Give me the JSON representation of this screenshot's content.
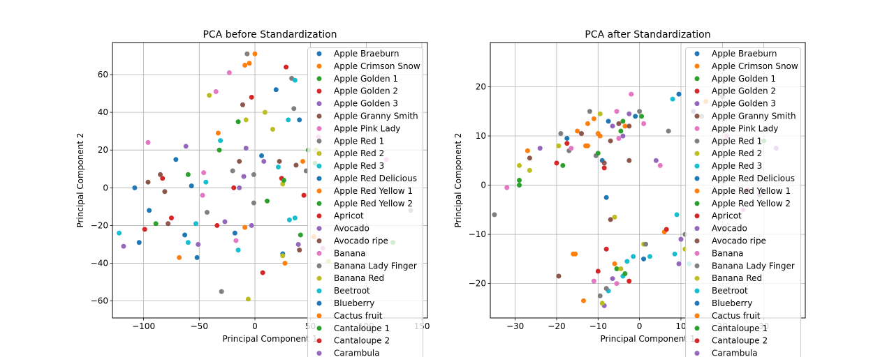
{
  "legend_labels": [
    "Apple Braeburn",
    "Apple Crimson Snow",
    "Apple Golden 1",
    "Apple Golden 2",
    "Apple Golden 3",
    "Apple Granny Smith",
    "Apple Pink Lady",
    "Apple Red 1",
    "Apple Red 2",
    "Apple Red 3",
    "Apple Red Delicious",
    "Apple Red Yellow 1",
    "Apple Red Yellow 2",
    "Apricot",
    "Avocado",
    "Avocado ripe",
    "Banana",
    "Banana Lady Finger",
    "Banana Red",
    "Beetroot",
    "Blueberry",
    "Cactus fruit",
    "Cantaloupe 1",
    "Cantaloupe 2",
    "Carambula"
  ],
  "palette": [
    "#1f77b4",
    "#ff7f0e",
    "#2ca02c",
    "#d62728",
    "#9467bd",
    "#8c564b",
    "#e377c2",
    "#7f7f7f",
    "#bcbd22",
    "#17becf"
  ],
  "chart_data": [
    {
      "type": "scatter",
      "title": "PCA before Standardization",
      "xlabel": "Principal Component 1",
      "ylabel": "Principal Component 2",
      "xlim": [
        -128,
        155
      ],
      "ylim": [
        -69,
        77
      ],
      "xticks": [
        -100,
        -50,
        0,
        50,
        100,
        150
      ],
      "yticks": [
        -60,
        -40,
        -20,
        0,
        20,
        40,
        60
      ],
      "xtick_labels": [
        "−100",
        "−50",
        "0",
        "50",
        "100",
        "150"
      ],
      "ytick_labels": [
        "−60",
        "−40",
        "−20",
        "0",
        "20",
        "40",
        "60"
      ],
      "grid": true,
      "legend": "upper right",
      "points": [
        [
          -108,
          0,
          0
        ],
        [
          -83,
          5,
          3
        ],
        [
          -85,
          7,
          5
        ],
        [
          -81,
          -2,
          5
        ],
        [
          -62,
          22,
          4
        ],
        [
          -57,
          1,
          0
        ],
        [
          -60,
          7,
          2
        ],
        [
          -71,
          15,
          0
        ],
        [
          -96,
          3,
          5
        ],
        [
          -96,
          24,
          6
        ],
        [
          -95,
          -12,
          0
        ],
        [
          -104,
          -29,
          0
        ],
        [
          -118,
          -31,
          4
        ],
        [
          -122,
          -24,
          9
        ],
        [
          -99,
          -22,
          3
        ],
        [
          -89,
          -19,
          2
        ],
        [
          -78,
          -19,
          5
        ],
        [
          -75,
          -16,
          3
        ],
        [
          -68,
          -37,
          1
        ],
        [
          -63,
          -25,
          0
        ],
        [
          -60,
          -29,
          9
        ],
        [
          -53,
          -19,
          9
        ],
        [
          -51,
          -30,
          4
        ],
        [
          -52,
          -37,
          0
        ],
        [
          -47,
          -4,
          6
        ],
        [
          -44,
          3,
          9
        ],
        [
          -46,
          8,
          6
        ],
        [
          -43,
          -13,
          7
        ],
        [
          -41,
          49,
          8
        ],
        [
          -35,
          51,
          6
        ],
        [
          -34,
          -20,
          3
        ],
        [
          -30,
          -55,
          7
        ],
        [
          -31,
          25,
          9
        ],
        [
          -32,
          20,
          2
        ],
        [
          -33,
          29,
          1
        ],
        [
          -27,
          -18,
          4
        ],
        [
          -23,
          61,
          6
        ],
        [
          -20,
          9,
          7
        ],
        [
          -19,
          0,
          3
        ],
        [
          -18,
          -24,
          0
        ],
        [
          -17,
          -28,
          6
        ],
        [
          -15,
          -33,
          9
        ],
        [
          -15,
          35,
          2
        ],
        [
          -14,
          14,
          5
        ],
        [
          -14,
          0,
          4
        ],
        [
          -11,
          44,
          5
        ],
        [
          -10,
          6,
          4
        ],
        [
          -9,
          -21,
          1
        ],
        [
          -8,
          36,
          8
        ],
        [
          -8,
          21,
          4
        ],
        [
          -7,
          71,
          7
        ],
        [
          -6,
          -59,
          8
        ],
        [
          -3,
          -20,
          4
        ],
        [
          -5,
          66,
          1
        ],
        [
          -3,
          48,
          3
        ],
        [
          0,
          71,
          1
        ],
        [
          -1,
          7,
          7
        ],
        [
          -1,
          -8,
          7
        ],
        [
          -9,
          65,
          1
        ],
        [
          6,
          17,
          0
        ],
        [
          7,
          -45,
          3
        ],
        [
          8,
          14,
          4
        ],
        [
          9,
          40,
          8
        ],
        [
          11,
          -7,
          2
        ],
        [
          16,
          31,
          8
        ],
        [
          19,
          52,
          0
        ],
        [
          21,
          11,
          9
        ],
        [
          22,
          14,
          5
        ],
        [
          24,
          5,
          3
        ],
        [
          25,
          2,
          8
        ],
        [
          26,
          4,
          2
        ],
        [
          25,
          -35,
          0
        ],
        [
          25,
          -36,
          8
        ],
        [
          27,
          -40,
          1
        ],
        [
          28,
          64,
          3
        ],
        [
          30,
          36,
          9
        ],
        [
          31,
          -17,
          9
        ],
        [
          33,
          58,
          7
        ],
        [
          36,
          57,
          9
        ],
        [
          35,
          42,
          7
        ],
        [
          36,
          -16,
          9
        ],
        [
          37,
          12,
          5
        ],
        [
          39,
          -30,
          4
        ],
        [
          40,
          36,
          0
        ],
        [
          40,
          -33,
          5
        ],
        [
          41,
          -25,
          2
        ],
        [
          43,
          14,
          1
        ],
        [
          44,
          -4,
          3
        ],
        [
          46,
          9,
          7
        ],
        [
          48,
          20,
          2
        ],
        [
          53,
          -26,
          1
        ],
        [
          57,
          27,
          6
        ],
        [
          55,
          20,
          8
        ],
        [
          54,
          13,
          2
        ],
        [
          61,
          -32,
          6
        ],
        [
          66,
          -39,
          8
        ],
        [
          118,
          15,
          6
        ],
        [
          140,
          -12,
          7
        ],
        [
          124,
          -29,
          2
        ]
      ]
    },
    {
      "type": "scatter",
      "title": "PCA after Standardization",
      "xlabel": "Principal Component 1",
      "ylabel": "Principal Component 2",
      "xlim": [
        -36,
        40
      ],
      "ylim": [
        -27,
        29
      ],
      "xticks": [
        -30,
        -20,
        -10,
        0,
        10,
        20,
        30
      ],
      "yticks": [
        -20,
        -10,
        0,
        10,
        20
      ],
      "xtick_labels": [
        "−30",
        "−20",
        "−10",
        "0",
        "10",
        "20",
        "30"
      ],
      "ytick_labels": [
        "−20",
        "−10",
        "0",
        "10",
        "20"
      ],
      "grid": true,
      "legend": "upper right",
      "points": [
        [
          -35,
          -6,
          7
        ],
        [
          -32,
          -0.5,
          6
        ],
        [
          -29,
          1,
          2
        ],
        [
          -29,
          0,
          2
        ],
        [
          -29,
          4,
          8
        ],
        [
          -27,
          7,
          1
        ],
        [
          -26.5,
          5.5,
          5
        ],
        [
          -26.5,
          3,
          8
        ],
        [
          -24,
          7.5,
          4
        ],
        [
          -20,
          4.5,
          3
        ],
        [
          -19.5,
          8,
          8
        ],
        [
          -19,
          10.5,
          7
        ],
        [
          -18.5,
          4,
          2
        ],
        [
          -17.5,
          8.5,
          3
        ],
        [
          -17.5,
          9.5,
          0
        ],
        [
          -17,
          7,
          7
        ],
        [
          -16.5,
          7.5,
          6
        ],
        [
          -16,
          -14,
          1
        ],
        [
          -15,
          11,
          1
        ],
        [
          -14,
          10.5,
          5
        ],
        [
          -13,
          8,
          1
        ],
        [
          -12.5,
          12.5,
          1
        ],
        [
          -12.5,
          8,
          1
        ],
        [
          -12,
          15,
          7
        ],
        [
          -11,
          13.5,
          1
        ],
        [
          -10.5,
          6,
          7
        ],
        [
          -10,
          6.5,
          2
        ],
        [
          -10,
          10.5,
          1
        ],
        [
          -9.5,
          10,
          1
        ],
        [
          -9.5,
          14.5,
          8
        ],
        [
          -9,
          5,
          0
        ],
        [
          -8.5,
          4.5,
          5
        ],
        [
          -8.5,
          3.5,
          3
        ],
        [
          -8,
          -2.5,
          0
        ],
        [
          -8,
          -13,
          3
        ],
        [
          -7.5,
          13,
          0
        ],
        [
          -7,
          9,
          5
        ],
        [
          -7,
          -7,
          5
        ],
        [
          -6.5,
          12,
          4
        ],
        [
          -5.5,
          15,
          6
        ],
        [
          -5,
          12.5,
          5
        ],
        [
          -5,
          9.5,
          6
        ],
        [
          -4.5,
          11,
          2
        ],
        [
          -4,
          13,
          2
        ],
        [
          -4,
          10,
          4
        ],
        [
          -3.5,
          12,
          1
        ],
        [
          -2.5,
          14.5,
          4
        ],
        [
          -2.5,
          12,
          5
        ],
        [
          -2.5,
          5,
          5
        ],
        [
          -2,
          18.5,
          6
        ],
        [
          -1,
          14,
          0
        ],
        [
          0,
          15,
          7
        ],
        [
          0.5,
          14,
          2
        ],
        [
          1,
          12.5,
          6
        ],
        [
          -6,
          -6.5,
          8
        ],
        [
          -6,
          -16,
          1
        ],
        [
          -5.5,
          -17,
          2
        ],
        [
          -4.5,
          -17,
          8
        ],
        [
          -4,
          -18.5,
          9
        ],
        [
          -3.5,
          -18,
          2
        ],
        [
          -3,
          -15.5,
          9
        ],
        [
          -2.5,
          -19.5,
          3
        ],
        [
          -1.5,
          -14.5,
          9
        ],
        [
          -5.5,
          -20,
          6
        ],
        [
          -6.5,
          -19,
          4
        ],
        [
          -7.5,
          -21.5,
          9
        ],
        [
          -8,
          -21,
          7
        ],
        [
          -8.5,
          -24.5,
          4
        ],
        [
          -9,
          -24,
          8
        ],
        [
          -9.5,
          -22.5,
          7
        ],
        [
          -10,
          -17.5,
          3
        ],
        [
          -11,
          -19.5,
          6
        ],
        [
          -13.5,
          -23.5,
          1
        ],
        [
          -15.5,
          -14,
          1
        ],
        [
          -19.5,
          -18.5,
          5
        ],
        [
          1,
          -12,
          8
        ],
        [
          1.5,
          -12,
          7
        ],
        [
          1,
          -15,
          0
        ],
        [
          2.5,
          -14.5,
          9
        ],
        [
          4,
          5,
          4
        ],
        [
          5,
          4,
          6
        ],
        [
          6,
          -9.5,
          1
        ],
        [
          6.5,
          -9,
          3
        ],
        [
          7,
          11,
          7
        ],
        [
          8,
          17.5,
          9
        ],
        [
          8.5,
          -14,
          9
        ],
        [
          9,
          -6,
          9
        ],
        [
          9.5,
          -16,
          4
        ],
        [
          10,
          -11,
          4
        ],
        [
          11,
          -10,
          7
        ],
        [
          9.5,
          18.5,
          0
        ],
        [
          11,
          -13,
          8
        ],
        [
          12,
          -16,
          9
        ],
        [
          13,
          15,
          4
        ],
        [
          15,
          14,
          7
        ],
        [
          16,
          17,
          1
        ],
        [
          20,
          18,
          7
        ],
        [
          21,
          10,
          6
        ],
        [
          25,
          -5,
          6
        ],
        [
          26,
          -1,
          3
        ],
        [
          29,
          -2,
          4
        ],
        [
          30,
          9,
          2
        ],
        [
          33,
          7.5,
          4
        ]
      ]
    }
  ]
}
